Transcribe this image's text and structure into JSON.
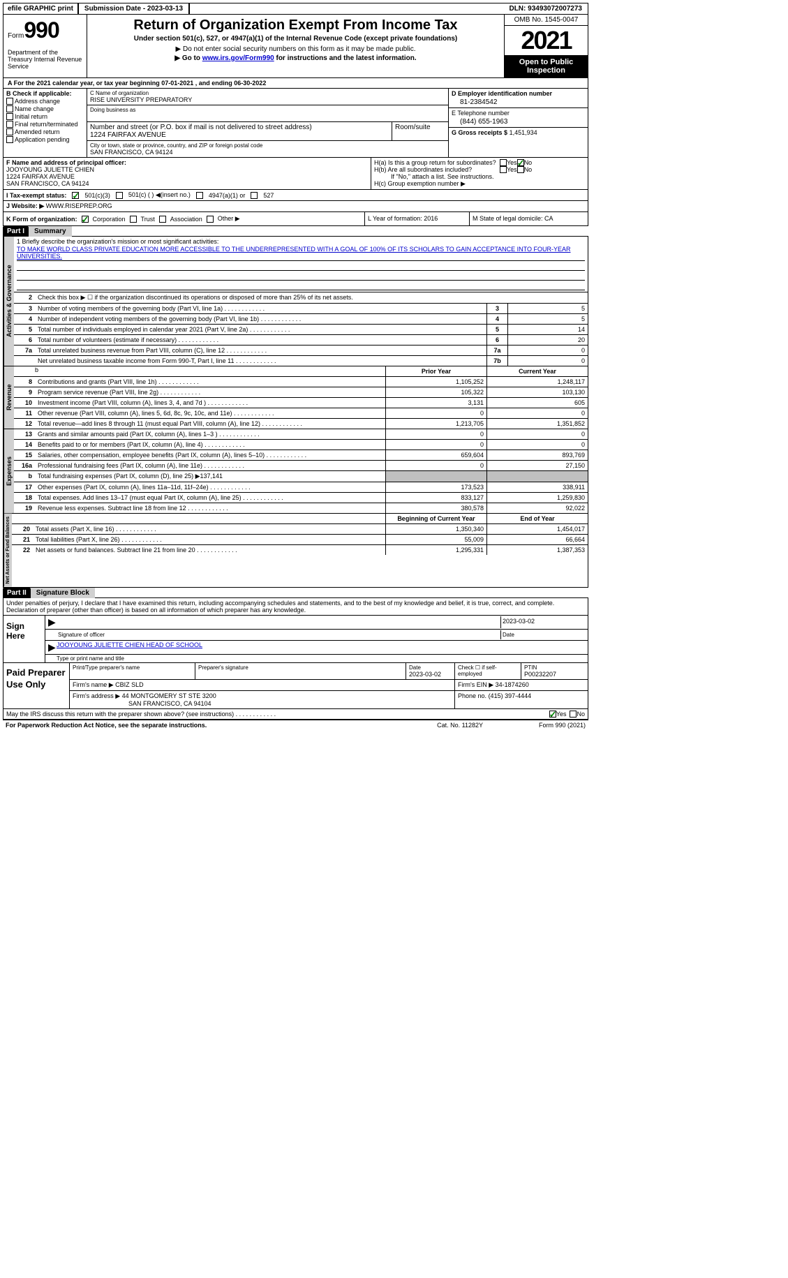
{
  "topbar": {
    "efile": "efile GRAPHIC print",
    "submission": "Submission Date - 2023-03-13",
    "dln": "DLN: 93493072007273"
  },
  "header": {
    "form_label": "Form",
    "form_num": "990",
    "dept": "Department of the Treasury Internal Revenue Service",
    "title": "Return of Organization Exempt From Income Tax",
    "sub1": "Under section 501(c), 527, or 4947(a)(1) of the Internal Revenue Code (except private foundations)",
    "sub2": "▶ Do not enter social security numbers on this form as it may be made public.",
    "sub3_pre": "▶ Go to ",
    "sub3_link": "www.irs.gov/Form990",
    "sub3_post": " for instructions and the latest information.",
    "omb": "OMB No. 1545-0047",
    "year": "2021",
    "open": "Open to Public Inspection"
  },
  "lineA": "A For the 2021 calendar year, or tax year beginning 07-01-2021    , and ending 06-30-2022",
  "colB": {
    "label": "B Check if applicable:",
    "items": [
      "Address change",
      "Name change",
      "Initial return",
      "Final return/terminated",
      "Amended return",
      "Application pending"
    ]
  },
  "colC": {
    "name_lbl": "C Name of organization",
    "name": "RISE UNIVERSITY PREPARATORY",
    "dba_lbl": "Doing business as",
    "street_lbl": "Number and street (or P.O. box if mail is not delivered to street address)",
    "street": "1224 FAIRFAX AVENUE",
    "room_lbl": "Room/suite",
    "city_lbl": "City or town, state or province, country, and ZIP or foreign postal code",
    "city": "SAN FRANCISCO, CA  94124"
  },
  "colD": {
    "ein_lbl": "D Employer identification number",
    "ein": "81-2384542",
    "phone_lbl": "E Telephone number",
    "phone": "(844) 655-1963",
    "gross_lbl": "G Gross receipts $",
    "gross": "1,451,934"
  },
  "rowF": {
    "lbl": "F Name and address of principal officer:",
    "name": "JOOYOUNG JULIETTE CHIEN",
    "addr1": "1224 FAIRFAX AVENUE",
    "addr2": "SAN FRANCISCO, CA  94124"
  },
  "rowH": {
    "ha": "H(a)  Is this a group return for subordinates?",
    "hb": "H(b)  Are all subordinates included?",
    "hb_note": "If \"No,\" attach a list. See instructions.",
    "hc": "H(c)  Group exemption number ▶"
  },
  "rowI": {
    "lbl": "I   Tax-exempt status:",
    "o1": "501(c)(3)",
    "o2": "501(c) (  ) ◀(insert no.)",
    "o3": "4947(a)(1) or",
    "o4": "527"
  },
  "rowJ": {
    "lbl": "J   Website: ▶",
    "val": "WWW.RISEPREP.ORG"
  },
  "rowK": {
    "lbl": "K Form of organization:",
    "o1": "Corporation",
    "o2": "Trust",
    "o3": "Association",
    "o4": "Other ▶",
    "L": "L Year of formation: 2016",
    "M": "M State of legal domicile: CA"
  },
  "part1": {
    "hdr": "Part I",
    "title": "Summary"
  },
  "mission": {
    "lbl": "1   Briefly describe the organization's mission or most significant activities:",
    "txt": "TO MAKE WORLD CLASS PRIVATE EDUCATION MORE ACCESSIBLE TO THE UNDERREPRESENTED WITH A GOAL OF 100% OF ITS SCHOLARS TO GAIN ACCEPTANCE INTO FOUR-YEAR UNIVERSITIES."
  },
  "line2": "Check this box ▶ ☐ if the organization discontinued its operations or disposed of more than 25% of its net assets.",
  "govLines": [
    {
      "n": "3",
      "t": "Number of voting members of the governing body (Part VI, line 1a)",
      "b": "3",
      "v": "5"
    },
    {
      "n": "4",
      "t": "Number of independent voting members of the governing body (Part VI, line 1b)",
      "b": "4",
      "v": "5"
    },
    {
      "n": "5",
      "t": "Total number of individuals employed in calendar year 2021 (Part V, line 2a)",
      "b": "5",
      "v": "14"
    },
    {
      "n": "6",
      "t": "Total number of volunteers (estimate if necessary)",
      "b": "6",
      "v": "20"
    },
    {
      "n": "7a",
      "t": "Total unrelated business revenue from Part VIII, column (C), line 12",
      "b": "7a",
      "v": "0"
    },
    {
      "n": " ",
      "t": "Net unrelated business taxable income from Form 990-T, Part I, line 11",
      "b": "7b",
      "v": "0"
    }
  ],
  "colHdr": {
    "prior": "Prior Year",
    "current": "Current Year"
  },
  "revLines": [
    {
      "n": "8",
      "t": "Contributions and grants (Part VIII, line 1h)",
      "p": "1,105,252",
      "c": "1,248,117"
    },
    {
      "n": "9",
      "t": "Program service revenue (Part VIII, line 2g)",
      "p": "105,322",
      "c": "103,130"
    },
    {
      "n": "10",
      "t": "Investment income (Part VIII, column (A), lines 3, 4, and 7d )",
      "p": "3,131",
      "c": "605"
    },
    {
      "n": "11",
      "t": "Other revenue (Part VIII, column (A), lines 5, 6d, 8c, 9c, 10c, and 11e)",
      "p": "0",
      "c": "0"
    },
    {
      "n": "12",
      "t": "Total revenue—add lines 8 through 11 (must equal Part VIII, column (A), line 12)",
      "p": "1,213,705",
      "c": "1,351,852"
    }
  ],
  "expLines": [
    {
      "n": "13",
      "t": "Grants and similar amounts paid (Part IX, column (A), lines 1–3 )",
      "p": "0",
      "c": "0"
    },
    {
      "n": "14",
      "t": "Benefits paid to or for members (Part IX, column (A), line 4)",
      "p": "0",
      "c": "0"
    },
    {
      "n": "15",
      "t": "Salaries, other compensation, employee benefits (Part IX, column (A), lines 5–10)",
      "p": "659,604",
      "c": "893,769"
    },
    {
      "n": "16a",
      "t": "Professional fundraising fees (Part IX, column (A), line 11e)",
      "p": "0",
      "c": "27,150"
    },
    {
      "n": "b",
      "t": "Total fundraising expenses (Part IX, column (D), line 25) ▶137,141",
      "p": "",
      "c": "",
      "shaded": true
    },
    {
      "n": "17",
      "t": "Other expenses (Part IX, column (A), lines 11a–11d, 11f–24e)",
      "p": "173,523",
      "c": "338,911"
    },
    {
      "n": "18",
      "t": "Total expenses. Add lines 13–17 (must equal Part IX, column (A), line 25)",
      "p": "833,127",
      "c": "1,259,830"
    },
    {
      "n": "19",
      "t": "Revenue less expenses. Subtract line 18 from line 12",
      "p": "380,578",
      "c": "92,022"
    }
  ],
  "colHdr2": {
    "beg": "Beginning of Current Year",
    "end": "End of Year"
  },
  "netLines": [
    {
      "n": "20",
      "t": "Total assets (Part X, line 16)",
      "p": "1,350,340",
      "c": "1,454,017"
    },
    {
      "n": "21",
      "t": "Total liabilities (Part X, line 26)",
      "p": "55,009",
      "c": "66,664"
    },
    {
      "n": "22",
      "t": "Net assets or fund balances. Subtract line 21 from line 20",
      "p": "1,295,331",
      "c": "1,387,353"
    }
  ],
  "vtabs": {
    "gov": "Activities & Governance",
    "rev": "Revenue",
    "exp": "Expenses",
    "net": "Net Assets or Fund Balances"
  },
  "part2": {
    "hdr": "Part II",
    "title": "Signature Block"
  },
  "sigTxt": "Under penalties of perjury, I declare that I have examined this return, including accompanying schedules and statements, and to the best of my knowledge and belief, it is true, correct, and complete. Declaration of preparer (other than officer) is based on all information of which preparer has any knowledge.",
  "sign": {
    "lbl": "Sign Here",
    "date": "2023-03-02",
    "sig_lbl": "Signature of officer",
    "date_lbl": "Date",
    "name": "JOOYOUNG JULIETTE CHIEN  HEAD OF SCHOOL",
    "name_lbl": "Type or print name and title"
  },
  "prep": {
    "lbl": "Paid Preparer Use Only",
    "h1": "Print/Type preparer's name",
    "h2": "Preparer's signature",
    "h3": "Date",
    "h3v": "2023-03-02",
    "h4": "Check ☐ if self-employed",
    "h5": "PTIN",
    "h5v": "P00232207",
    "firm_lbl": "Firm's name   ▶",
    "firm": "CBIZ SLD",
    "ein_lbl": "Firm's EIN ▶",
    "ein": "34-1874260",
    "addr_lbl": "Firm's address ▶",
    "addr1": "44 MONTGOMERY ST STE 3200",
    "addr2": "SAN FRANCISCO, CA  94104",
    "phone_lbl": "Phone no.",
    "phone": "(415) 397-4444"
  },
  "footer1": "May the IRS discuss this return with the preparer shown above? (see instructions)",
  "footer2a": "For Paperwork Reduction Act Notice, see the separate instructions.",
  "footer2b": "Cat. No. 11282Y",
  "footer2c": "Form 990 (2021)"
}
